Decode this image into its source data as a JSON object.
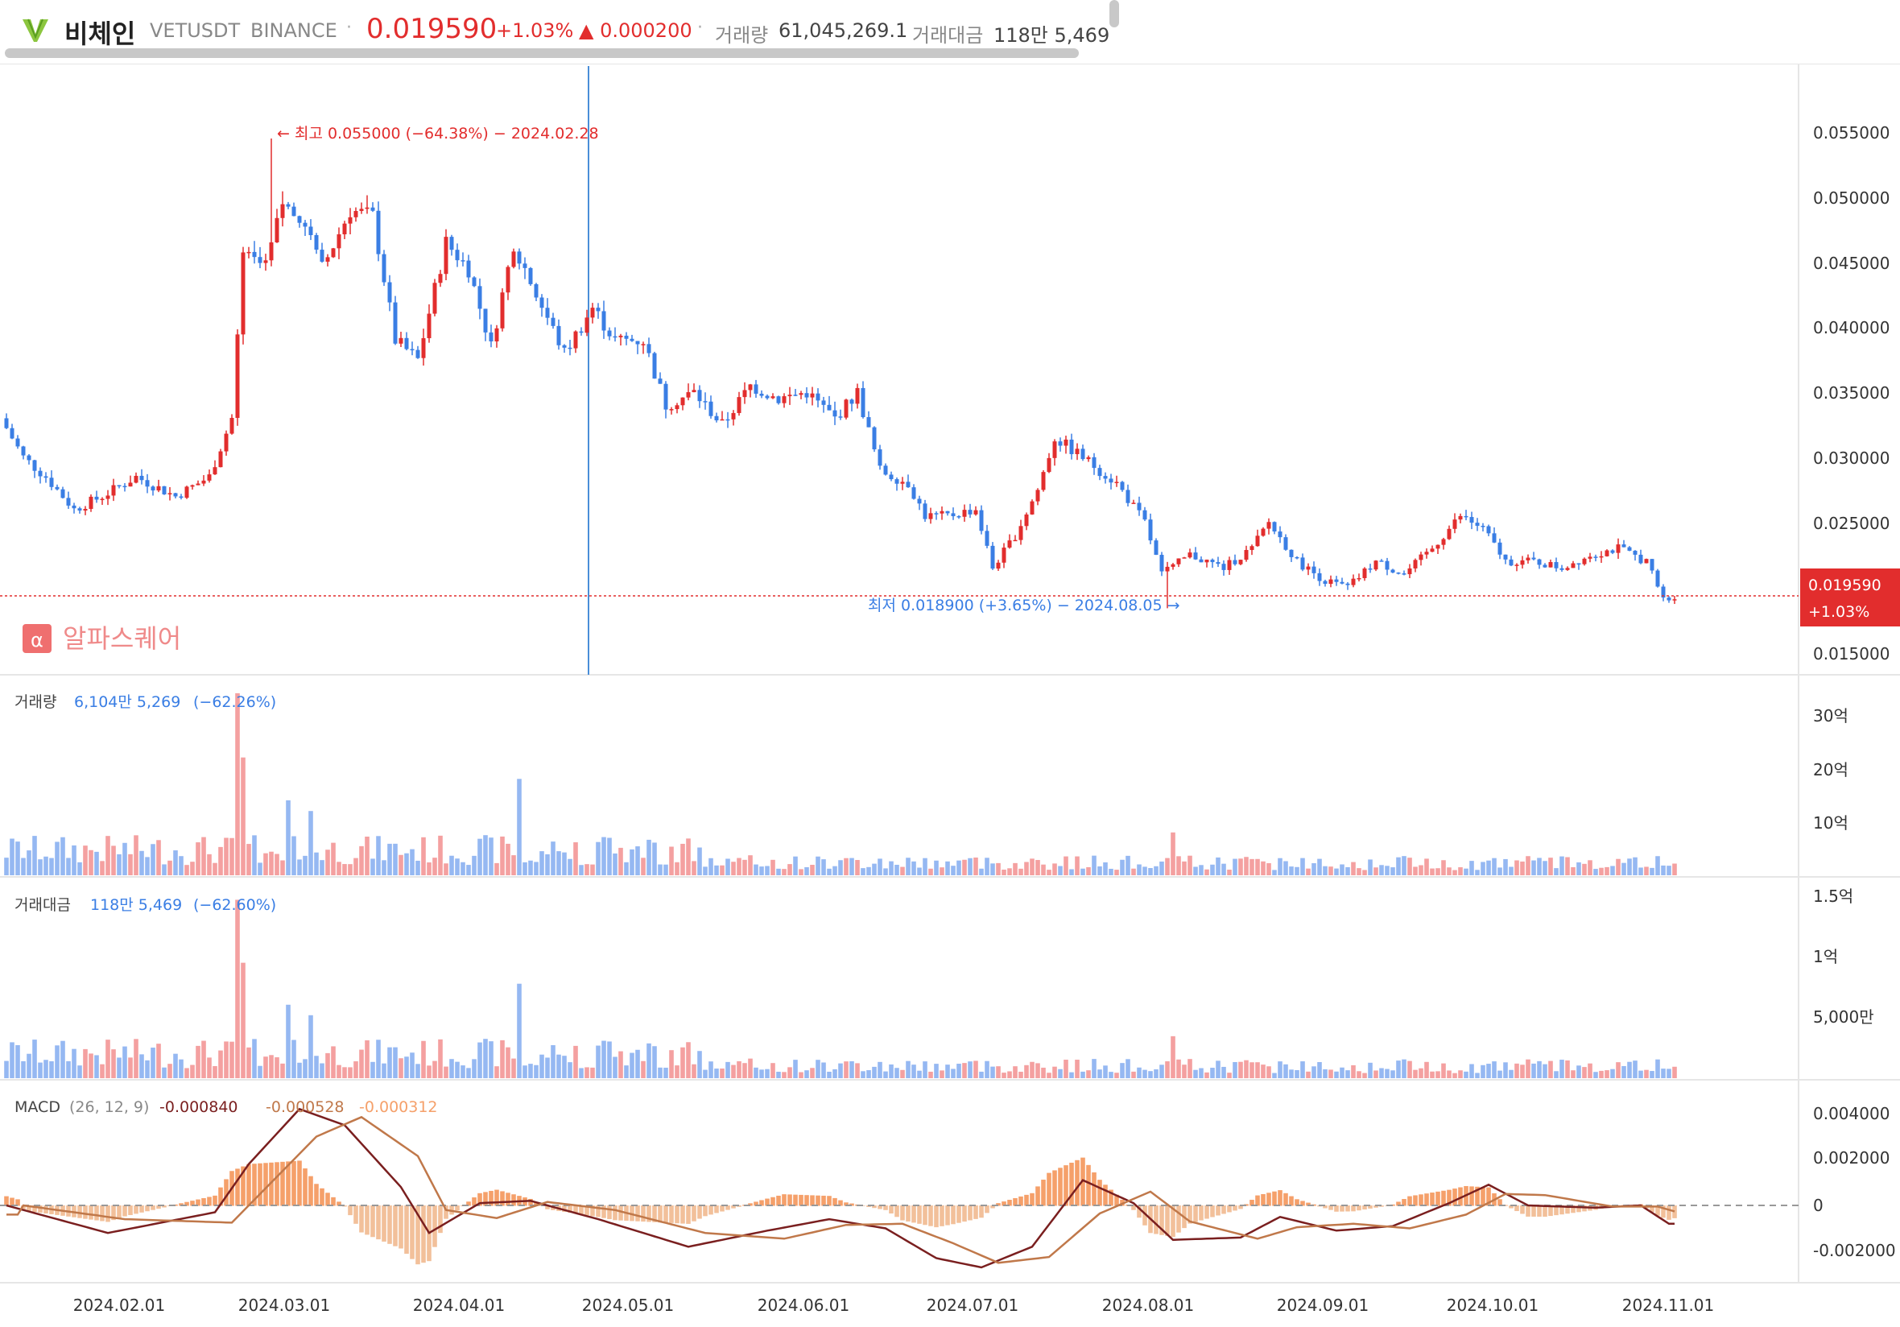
{
  "header": {
    "name": "비체인",
    "symbol": "VETUSDT",
    "exchange": "BINANCE",
    "price": "0.019590",
    "change_pct": "+1.03%",
    "change_abs": "▲ 0.000200",
    "volume_label": "거래량",
    "volume_value": "61,045,269.1",
    "amount_label": "거래대금",
    "amount_value": "118만 5,469"
  },
  "colors": {
    "up": "#e22d2d",
    "down": "#3a7ee4",
    "up_bar": "#f4a0a0",
    "down_bar": "#95b8f2",
    "macd": "#7a1f1f",
    "signal": "#c0784a",
    "hist": "#f5a06a"
  },
  "price_pane": {
    "high_annotation": "← 최고 0.055000 (−64.38%) − 2024.02.28",
    "low_annotation": "최저 0.018900 (+3.65%) − 2024.08.05 →",
    "current_tag_price": "0.019590",
    "current_tag_pct": "+1.03%",
    "watermark": "알파스퀘어",
    "y_ticks": [
      "0.055000",
      "0.050000",
      "0.045000",
      "0.040000",
      "0.035000",
      "0.030000",
      "0.025000",
      "0.015000"
    ]
  },
  "volume_pane": {
    "label": "거래량",
    "value": "6,104만 5,269",
    "pct": "(−62.26%)",
    "y_ticks": [
      "30억",
      "20억",
      "10억"
    ]
  },
  "amount_pane": {
    "label": "거래대금",
    "value": "118만 5,469",
    "pct": "(−62.60%)",
    "y_ticks": [
      "1.5억",
      "1억",
      "5,000만"
    ]
  },
  "macd_pane": {
    "label": "MACD",
    "params": "(26, 12, 9)",
    "macd_value": "-0.000840",
    "signal_value": "-0.000528",
    "hist_value": "-0.000312",
    "y_ticks": [
      "0.004000",
      "0.002000",
      "0",
      "-0.002000"
    ]
  },
  "x_ticks": [
    "2024.02.01",
    "2024.03.01",
    "2024.04.01",
    "2024.05.01",
    "2024.06.01",
    "2024.07.01",
    "2024.08.01",
    "2024.09.01",
    "2024.10.01",
    "2024.11.01"
  ],
  "chart_data": {
    "type": "candlestick",
    "x_range": [
      "2024-01-12",
      "2024-11-03"
    ],
    "y_range": [
      0.015,
      0.0595
    ],
    "price_anchors": [
      [
        "2024-01-12",
        0.0335
      ],
      [
        "2024-01-16",
        0.0305
      ],
      [
        "2024-01-20",
        0.029
      ],
      [
        "2024-01-25",
        0.0265
      ],
      [
        "2024-01-30",
        0.0275
      ],
      [
        "2024-02-05",
        0.029
      ],
      [
        "2024-02-12",
        0.0275
      ],
      [
        "2024-02-18",
        0.029
      ],
      [
        "2024-02-22",
        0.0335
      ],
      [
        "2024-02-24",
        0.046
      ],
      [
        "2024-02-28",
        0.045
      ],
      [
        "2024-03-02",
        0.05
      ],
      [
        "2024-03-06",
        0.048
      ],
      [
        "2024-03-09",
        0.045
      ],
      [
        "2024-03-14",
        0.0495
      ],
      [
        "2024-03-18",
        0.049
      ],
      [
        "2024-03-22",
        0.0395
      ],
      [
        "2024-03-26",
        0.038
      ],
      [
        "2024-03-31",
        0.047
      ],
      [
        "2024-04-04",
        0.045
      ],
      [
        "2024-04-08",
        0.039
      ],
      [
        "2024-04-12",
        0.047
      ],
      [
        "2024-04-16",
        0.043
      ],
      [
        "2024-04-21",
        0.0385
      ],
      [
        "2024-04-26",
        0.042
      ],
      [
        "2024-04-30",
        0.0395
      ],
      [
        "2024-05-05",
        0.0395
      ],
      [
        "2024-05-09",
        0.0345
      ],
      [
        "2024-05-14",
        0.0355
      ],
      [
        "2024-05-19",
        0.033
      ],
      [
        "2024-05-24",
        0.036
      ],
      [
        "2024-05-29",
        0.035
      ],
      [
        "2024-06-03",
        0.0355
      ],
      [
        "2024-06-08",
        0.0335
      ],
      [
        "2024-06-12",
        0.0355
      ],
      [
        "2024-06-16",
        0.0295
      ],
      [
        "2024-06-21",
        0.0285
      ],
      [
        "2024-06-24",
        0.026
      ],
      [
        "2024-06-28",
        0.026
      ],
      [
        "2024-07-03",
        0.0265
      ],
      [
        "2024-07-06",
        0.022
      ],
      [
        "2024-07-10",
        0.0245
      ],
      [
        "2024-07-14",
        0.028
      ],
      [
        "2024-07-17",
        0.032
      ],
      [
        "2024-07-22",
        0.0305
      ],
      [
        "2024-07-28",
        0.0285
      ],
      [
        "2024-08-02",
        0.0255
      ],
      [
        "2024-08-05",
        0.0215
      ],
      [
        "2024-08-10",
        0.023
      ],
      [
        "2024-08-16",
        0.022
      ],
      [
        "2024-08-21",
        0.0235
      ],
      [
        "2024-08-24",
        0.0255
      ],
      [
        "2024-08-29",
        0.0225
      ],
      [
        "2024-09-03",
        0.021
      ],
      [
        "2024-09-07",
        0.0205
      ],
      [
        "2024-09-12",
        0.0225
      ],
      [
        "2024-09-17",
        0.0215
      ],
      [
        "2024-09-22",
        0.0235
      ],
      [
        "2024-09-27",
        0.026
      ],
      [
        "2024-10-01",
        0.025
      ],
      [
        "2024-10-05",
        0.0225
      ],
      [
        "2024-10-10",
        0.0225
      ],
      [
        "2024-10-15",
        0.022
      ],
      [
        "2024-10-20",
        0.023
      ],
      [
        "2024-10-25",
        0.0235
      ],
      [
        "2024-10-30",
        0.0225
      ],
      [
        "2024-11-02",
        0.0196
      ]
    ],
    "high": {
      "date": "2024-02-28",
      "price": 0.055
    },
    "low": {
      "date": "2024-08-05",
      "price": 0.0189
    },
    "last": 0.01959,
    "volume_spikes": [
      [
        "2024-02-22",
        34
      ],
      [
        "2024-02-23",
        22
      ],
      [
        "2024-04-12",
        18
      ],
      [
        "2024-03-02",
        14
      ],
      [
        "2024-03-06",
        12
      ],
      [
        "2024-08-06",
        8
      ]
    ],
    "macd_anchors": [
      [
        "2024-01-12",
        0.0
      ],
      [
        "2024-01-30",
        -0.0012
      ],
      [
        "2024-02-18",
        -0.0003
      ],
      [
        "2024-02-24",
        0.0018
      ],
      [
        "2024-03-04",
        0.0042
      ],
      [
        "2024-03-12",
        0.0035
      ],
      [
        "2024-03-22",
        0.0008
      ],
      [
        "2024-03-27",
        -0.0012
      ],
      [
        "2024-04-05",
        0.0001
      ],
      [
        "2024-04-14",
        0.0002
      ],
      [
        "2024-04-26",
        -0.0006
      ],
      [
        "2024-05-12",
        -0.0018
      ],
      [
        "2024-05-26",
        -0.0011
      ],
      [
        "2024-06-06",
        -0.0006
      ],
      [
        "2024-06-16",
        -0.001
      ],
      [
        "2024-06-25",
        -0.0023
      ],
      [
        "2024-07-03",
        -0.0027
      ],
      [
        "2024-07-12",
        -0.0018
      ],
      [
        "2024-07-21",
        0.0011
      ],
      [
        "2024-07-30",
        0.0001
      ],
      [
        "2024-08-06",
        -0.0015
      ],
      [
        "2024-08-18",
        -0.0014
      ],
      [
        "2024-08-25",
        -0.0005
      ],
      [
        "2024-09-04",
        -0.0011
      ],
      [
        "2024-09-14",
        -0.0009
      ],
      [
        "2024-09-24",
        0.0001
      ],
      [
        "2024-10-01",
        0.0009
      ],
      [
        "2024-10-08",
        0.0
      ],
      [
        "2024-10-20",
        -0.0001
      ],
      [
        "2024-10-28",
        0.0
      ],
      [
        "2024-11-02",
        -0.0008
      ]
    ]
  }
}
